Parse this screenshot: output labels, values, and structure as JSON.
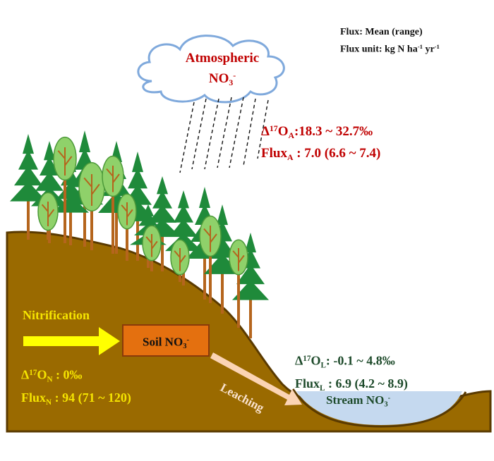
{
  "legend": {
    "line1": "Flux: Mean  (range)",
    "line2_prefix": "Flux unit: kg N ha",
    "line2_exp1": "-1",
    "line2_mid": " yr",
    "line2_exp2": "-1"
  },
  "atmosphere": {
    "line1": "Atmospheric",
    "line2": "NO",
    "sub": "3",
    "sup": "-",
    "delta": "Δ",
    "delta_sup": "17",
    "delta_o": "O",
    "delta_sub": "A",
    "delta_value": ":18.3 ~ 32.7‰",
    "flux": "Flux",
    "flux_sub": "A",
    "flux_value": " : 7.0  (6.6 ~ 7.4)"
  },
  "nitrification": {
    "label": "Nitrification",
    "delta": "Δ",
    "delta_sup": "17",
    "delta_o": "O",
    "delta_sub": "N",
    "delta_value": " : 0‰",
    "flux": "Flux",
    "flux_sub": "N",
    "flux_value": " : 94 (71 ~ 120)"
  },
  "soil": {
    "label": "Soil NO",
    "sub": "3",
    "sup": "-"
  },
  "leaching": {
    "label": "Leaching",
    "delta": "Δ",
    "delta_sup": "17",
    "delta_o": "O",
    "delta_sub": "L",
    "delta_value": ": -0.1 ~ 4.8‰",
    "flux": "Flux",
    "flux_sub": "L",
    "flux_value": " : 6.9 (4.2 ~ 8.9)"
  },
  "stream": {
    "label": "Stream NO",
    "sub": "3",
    "sup": "-"
  },
  "colors": {
    "soil_ground": "#9a6a00",
    "atmospheric": "#c00000",
    "nitrification": "#ffff00",
    "leaching": "#1d4a2a",
    "soil_box": "#e4700f",
    "stream": "#c5d9ef",
    "cloud": "#7fa9dc"
  }
}
